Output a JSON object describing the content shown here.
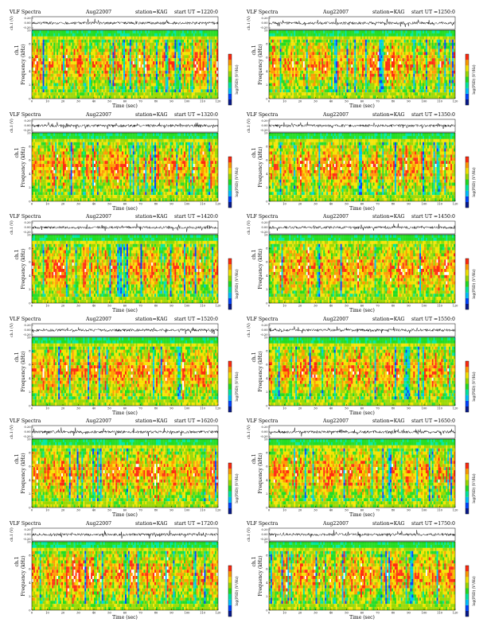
{
  "colors": {
    "scale": [
      "#081a8c",
      "#0044ff",
      "#00c0ff",
      "#00e8a0",
      "#22dd22",
      "#9ad800",
      "#f5e400",
      "#ff9a00",
      "#ff2a10",
      "#ffffff"
    ],
    "axis": "#000000",
    "waveform": "#000000"
  },
  "chart_data": [
    {
      "type": "heatmap",
      "title": "VLF Spectra",
      "date": "Aug22007",
      "station": "station=KAG",
      "start_label": "start UT =1220:0",
      "x_axis": {
        "label": "Time (sec)",
        "range": [
          0,
          120
        ],
        "ticks": [
          "0",
          "10",
          "20",
          "30",
          "40",
          "50",
          "60",
          "70",
          "80",
          "90",
          "100",
          "110",
          "120"
        ]
      },
      "y_axis": {
        "label": "Frequency (kHz)",
        "range": [
          0,
          10
        ],
        "ticks": [
          "0",
          "2",
          "4",
          "6",
          "8",
          "10"
        ]
      },
      "waveform": {
        "label": "ch.1 (V)",
        "ticks": [
          "0.20",
          "0.00",
          "-0.20"
        ]
      },
      "side_label": "ch.1",
      "colorbar": {
        "label": "log(PSD) (V²/Hz)"
      }
    },
    {
      "type": "heatmap",
      "title": "VLF Spectra",
      "date": "Aug22007",
      "station": "station=KAG",
      "start_label": "start UT =1250:0",
      "x_axis": {
        "label": "Time (sec)",
        "range": [
          0,
          120
        ],
        "ticks": [
          "0",
          "10",
          "20",
          "30",
          "40",
          "50",
          "60",
          "70",
          "80",
          "90",
          "100",
          "110",
          "120"
        ]
      },
      "y_axis": {
        "label": "Frequency (kHz)",
        "range": [
          0,
          10
        ],
        "ticks": [
          "0",
          "2",
          "4",
          "6",
          "8",
          "10"
        ]
      },
      "waveform": {
        "label": "ch.1 (V)",
        "ticks": [
          "0.20",
          "0.00",
          "-0.20"
        ]
      },
      "side_label": "ch.1",
      "colorbar": {
        "label": "log(PSD) (V²/Hz)"
      }
    },
    {
      "type": "heatmap",
      "title": "VLF Spectra",
      "date": "Aug22007",
      "station": "station=KAG",
      "start_label": "start UT =1320:0",
      "x_axis": {
        "label": "Time (sec)",
        "range": [
          0,
          120
        ],
        "ticks": [
          "0",
          "10",
          "20",
          "30",
          "40",
          "50",
          "60",
          "70",
          "80",
          "90",
          "100",
          "110",
          "120"
        ]
      },
      "y_axis": {
        "label": "Frequency (kHz)",
        "range": [
          0,
          10
        ],
        "ticks": [
          "0",
          "2",
          "4",
          "6",
          "8",
          "10"
        ]
      },
      "waveform": {
        "label": "ch.1 (V)",
        "ticks": [
          "0.20",
          "0.00",
          "-0.20"
        ]
      },
      "side_label": "ch.1",
      "colorbar": {
        "label": "log(PSD) (V²/Hz)"
      }
    },
    {
      "type": "heatmap",
      "title": "VLF Spectra",
      "date": "Aug22007",
      "station": "station=KAG",
      "start_label": "start UT =1350:0",
      "x_axis": {
        "label": "Time (sec)",
        "range": [
          0,
          120
        ],
        "ticks": [
          "0",
          "10",
          "20",
          "30",
          "40",
          "50",
          "60",
          "70",
          "80",
          "90",
          "100",
          "110",
          "120"
        ]
      },
      "y_axis": {
        "label": "Frequency (kHz)",
        "range": [
          0,
          10
        ],
        "ticks": [
          "0",
          "2",
          "4",
          "6",
          "8",
          "10"
        ]
      },
      "waveform": {
        "label": "ch.1 (V)",
        "ticks": [
          "0.20",
          "0.00",
          "-0.20"
        ]
      },
      "side_label": "ch.1",
      "colorbar": {
        "label": "log(PSD) (V²/Hz)"
      }
    },
    {
      "type": "heatmap",
      "title": "VLF Spectra",
      "date": "Aug22007",
      "station": "station=KAG",
      "start_label": "start UT =1420:0",
      "x_axis": {
        "label": "Time (sec)",
        "range": [
          0,
          120
        ],
        "ticks": [
          "0",
          "10",
          "20",
          "30",
          "40",
          "50",
          "60",
          "70",
          "80",
          "90",
          "100",
          "110",
          "120"
        ]
      },
      "y_axis": {
        "label": "Frequency (kHz)",
        "range": [
          0,
          10
        ],
        "ticks": [
          "0",
          "2",
          "4",
          "6",
          "8",
          "10"
        ]
      },
      "waveform": {
        "label": "ch.1 (V)",
        "ticks": [
          "0.20",
          "0.00",
          "-0.20"
        ]
      },
      "side_label": "ch.1",
      "colorbar": {
        "label": "log(PSD) (V²/Hz)"
      }
    },
    {
      "type": "heatmap",
      "title": "VLF Spectra",
      "date": "Aug22007",
      "station": "station=KAG",
      "start_label": "start UT =1450:0",
      "x_axis": {
        "label": "Time (sec)",
        "range": [
          0,
          120
        ],
        "ticks": [
          "0",
          "10",
          "20",
          "30",
          "40",
          "50",
          "60",
          "70",
          "80",
          "90",
          "100",
          "110",
          "120"
        ]
      },
      "y_axis": {
        "label": "Frequency (kHz)",
        "range": [
          0,
          10
        ],
        "ticks": [
          "0",
          "2",
          "4",
          "6",
          "8",
          "10"
        ]
      },
      "waveform": {
        "label": "ch.1 (V)",
        "ticks": [
          "0.20",
          "0.00",
          "-0.20"
        ]
      },
      "side_label": "ch.1",
      "colorbar": {
        "label": "log(PSD) (V²/Hz)"
      }
    },
    {
      "type": "heatmap",
      "title": "VLF Spectra",
      "date": "Aug22007",
      "station": "station=KAG",
      "start_label": "start UT =1520:0",
      "x_axis": {
        "label": "Time (sec)",
        "range": [
          0,
          120
        ],
        "ticks": [
          "0",
          "10",
          "20",
          "30",
          "40",
          "50",
          "60",
          "70",
          "80",
          "90",
          "100",
          "110",
          "120"
        ]
      },
      "y_axis": {
        "label": "Frequency (kHz)",
        "range": [
          0,
          10
        ],
        "ticks": [
          "0",
          "2",
          "4",
          "6",
          "8",
          "10"
        ]
      },
      "waveform": {
        "label": "ch.1 (V)",
        "ticks": [
          "0.20",
          "0.00",
          "-0.20"
        ]
      },
      "side_label": "ch.1",
      "colorbar": {
        "label": "log(PSD) (V²/Hz)"
      }
    },
    {
      "type": "heatmap",
      "title": "VLF Spectra",
      "date": "Aug22007",
      "station": "station=KAG",
      "start_label": "start UT =1550:0",
      "x_axis": {
        "label": "Time (sec)",
        "range": [
          0,
          120
        ],
        "ticks": [
          "0",
          "10",
          "20",
          "30",
          "40",
          "50",
          "60",
          "70",
          "80",
          "90",
          "100",
          "110",
          "120"
        ]
      },
      "y_axis": {
        "label": "Frequency (kHz)",
        "range": [
          0,
          10
        ],
        "ticks": [
          "0",
          "2",
          "4",
          "6",
          "8",
          "10"
        ]
      },
      "waveform": {
        "label": "ch.1 (V)",
        "ticks": [
          "0.20",
          "0.00",
          "-0.20"
        ]
      },
      "side_label": "ch.1",
      "colorbar": {
        "label": "log(PSD) (V²/Hz)"
      }
    },
    {
      "type": "heatmap",
      "title": "VLF Spectra",
      "date": "Aug22007",
      "station": "station=KAG",
      "start_label": "start UT =1620:0",
      "x_axis": {
        "label": "Time (sec)",
        "range": [
          0,
          120
        ],
        "ticks": [
          "0",
          "10",
          "20",
          "30",
          "40",
          "50",
          "60",
          "70",
          "80",
          "90",
          "100",
          "110",
          "120"
        ]
      },
      "y_axis": {
        "label": "Frequency (kHz)",
        "range": [
          0,
          10
        ],
        "ticks": [
          "0",
          "2",
          "4",
          "6",
          "8",
          "10"
        ]
      },
      "waveform": {
        "label": "ch.1 (V)",
        "ticks": [
          "0.20",
          "0.00",
          "-0.20"
        ]
      },
      "side_label": "ch.1",
      "colorbar": {
        "label": "log(PSD) (V²/Hz)"
      }
    },
    {
      "type": "heatmap",
      "title": "VLF Spectra",
      "date": "Aug22007",
      "station": "station=KAG",
      "start_label": "start UT =1650:0",
      "x_axis": {
        "label": "Time (sec)",
        "range": [
          0,
          120
        ],
        "ticks": [
          "0",
          "10",
          "20",
          "30",
          "40",
          "50",
          "60",
          "70",
          "80",
          "90",
          "100",
          "110",
          "120"
        ]
      },
      "y_axis": {
        "label": "Frequency (kHz)",
        "range": [
          0,
          10
        ],
        "ticks": [
          "0",
          "2",
          "4",
          "6",
          "8",
          "10"
        ]
      },
      "waveform": {
        "label": "ch.1 (V)",
        "ticks": [
          "0.20",
          "0.00",
          "-0.20"
        ]
      },
      "side_label": "ch.1",
      "colorbar": {
        "label": "log(PSD) (V²/Hz)"
      }
    },
    {
      "type": "heatmap",
      "title": "VLF Spectra",
      "date": "Aug22007",
      "station": "station=KAG",
      "start_label": "start UT =1720:0",
      "x_axis": {
        "label": "Time (sec)",
        "range": [
          0,
          120
        ],
        "ticks": [
          "0",
          "10",
          "20",
          "30",
          "40",
          "50",
          "60",
          "70",
          "80",
          "90",
          "100",
          "110",
          "120"
        ]
      },
      "y_axis": {
        "label": "Frequency (kHz)",
        "range": [
          0,
          10
        ],
        "ticks": [
          "0",
          "2",
          "4",
          "6",
          "8",
          "10"
        ]
      },
      "waveform": {
        "label": "ch.1 (V)",
        "ticks": [
          "0.20",
          "0.00",
          "-0.20"
        ]
      },
      "side_label": "ch.1",
      "colorbar": {
        "label": "log(PSD) (V²/Hz)"
      }
    },
    {
      "type": "heatmap",
      "title": "VLF Spectra",
      "date": "Aug22007",
      "station": "station=KAG",
      "start_label": "start UT =1750:0",
      "x_axis": {
        "label": "Time (sec)",
        "range": [
          0,
          120
        ],
        "ticks": [
          "0",
          "10",
          "20",
          "30",
          "40",
          "50",
          "60",
          "70",
          "80",
          "90",
          "100",
          "110",
          "120"
        ]
      },
      "y_axis": {
        "label": "Frequency (kHz)",
        "range": [
          0,
          10
        ],
        "ticks": [
          "0",
          "2",
          "4",
          "6",
          "8",
          "10"
        ]
      },
      "waveform": {
        "label": "ch.1 (V)",
        "ticks": [
          "0.20",
          "0.00",
          "-0.20"
        ]
      },
      "side_label": "ch.1",
      "colorbar": {
        "label": "log(PSD) (V²/Hz)"
      }
    }
  ]
}
